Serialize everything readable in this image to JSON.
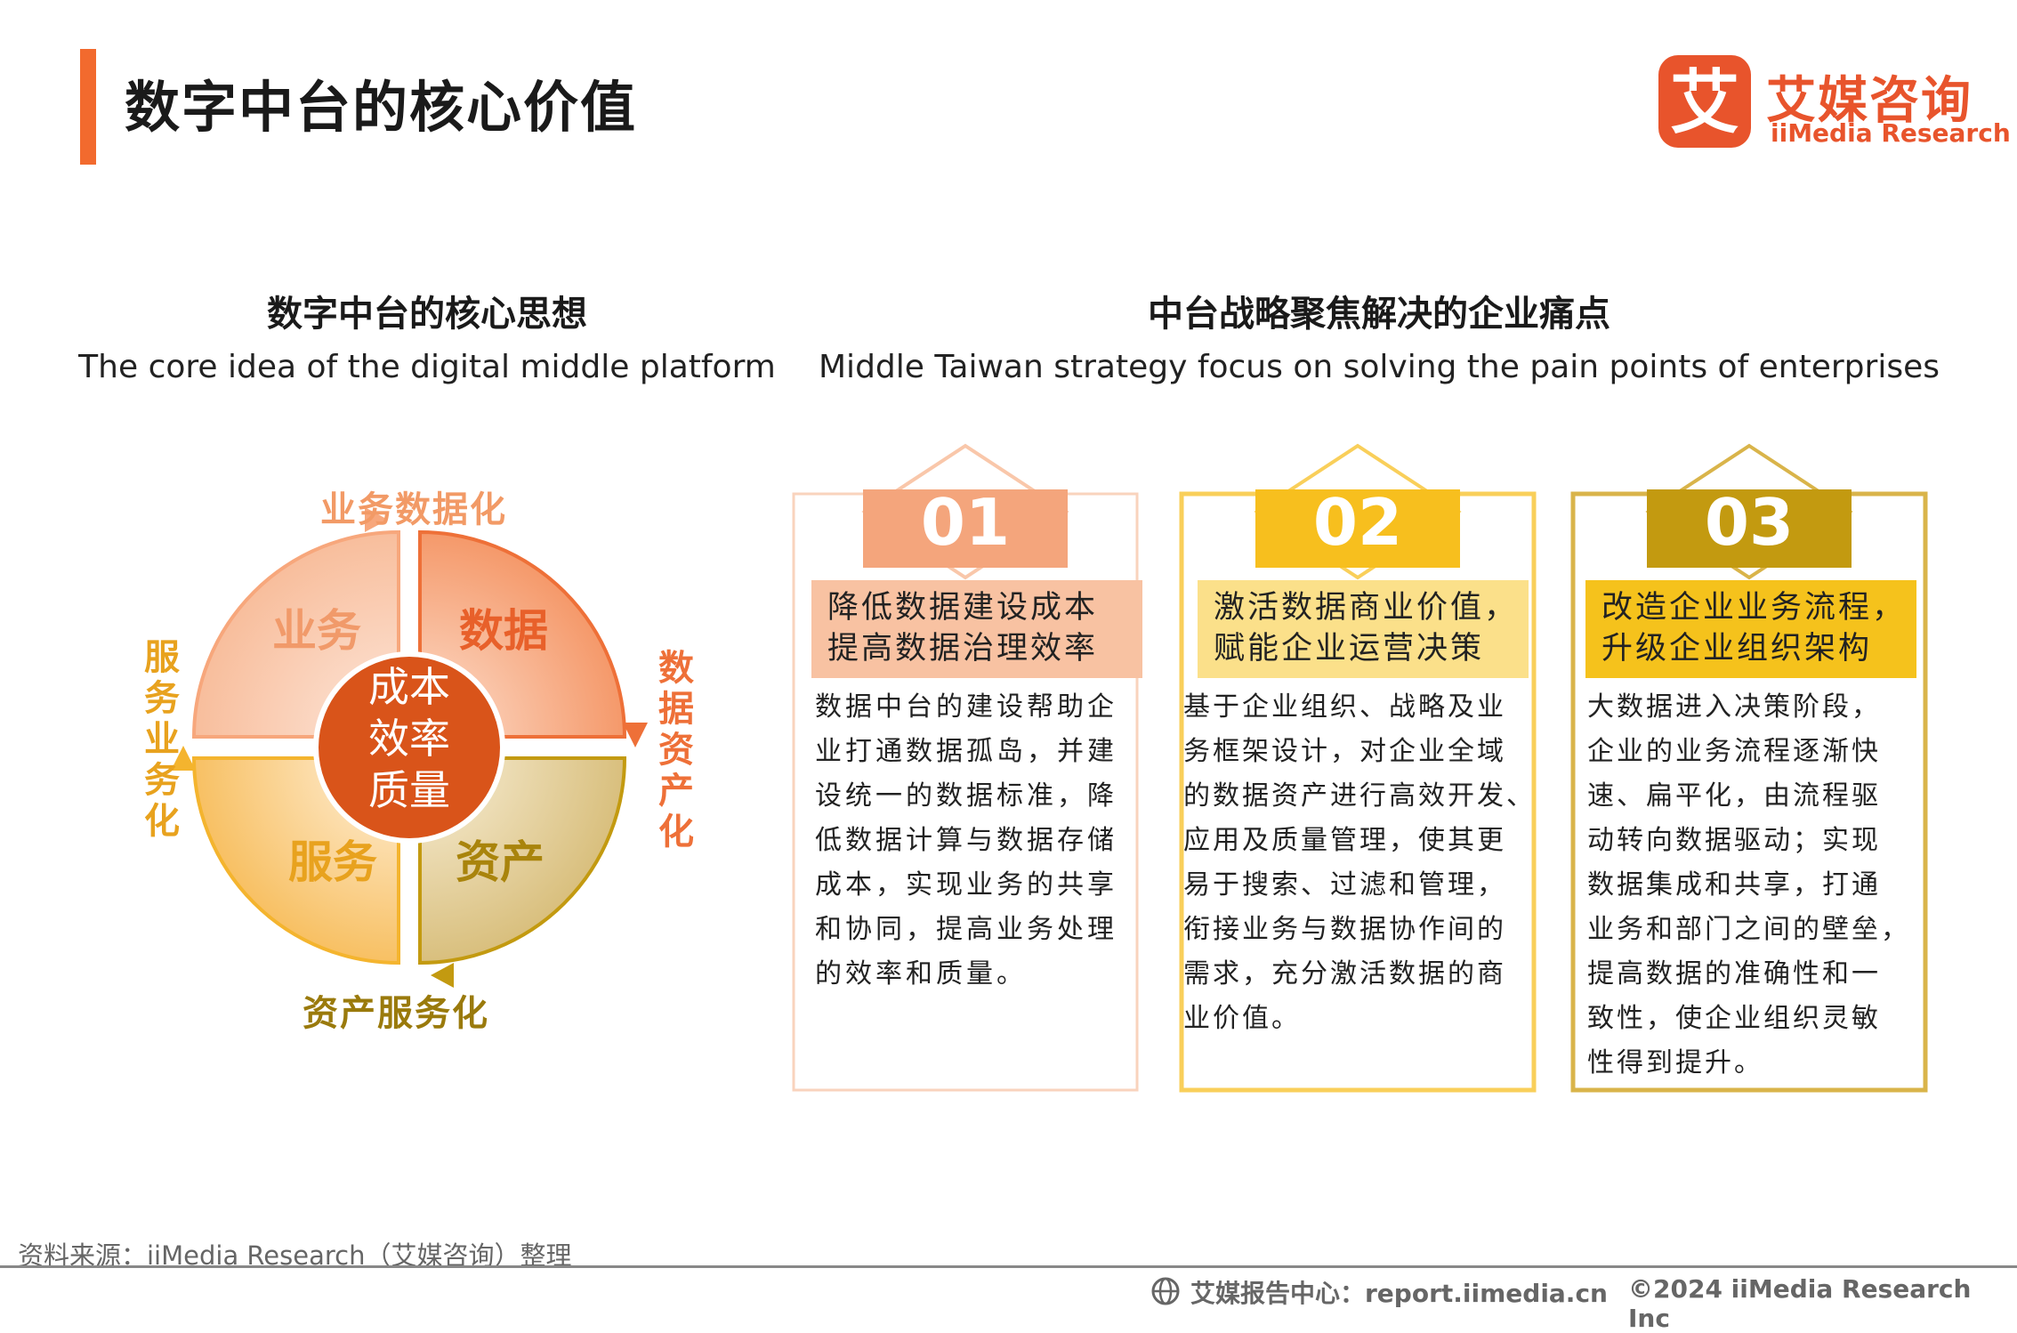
{
  "header": {
    "title": "数字中台的核心价值",
    "logo": {
      "icon": "ai-logo-icon",
      "glyph": "艾",
      "name_cn": "艾媒咨询",
      "name_en": "iiMedia Research",
      "color": "#e8542c"
    }
  },
  "left_section": {
    "title_cn": "数字中台的核心思想",
    "title_en": "The core idea of the digital middle platform",
    "cycle": {
      "center": [
        "成本",
        "效率",
        "质量"
      ],
      "quadrants": [
        "业务",
        "数据",
        "服务",
        "资产"
      ],
      "labels": {
        "top": "业务数据化",
        "right": "数据资产化",
        "bottom": "资产服务化",
        "left": "服务业务化"
      }
    }
  },
  "right_section": {
    "title_cn": "中台战略聚焦解决的企业痛点",
    "title_en": "Middle Taiwan strategy focus on solving the pain points of enterprises",
    "cards": [
      {
        "number": "01",
        "heading": [
          "降低数据建设成本",
          "提高数据治理效率"
        ],
        "body": [
          "数据中台的建设帮助企",
          "业打通数据孤岛，并建",
          "设统一的数据标准，降",
          "低数据计算与数据存储",
          "成本，实现业务的共享",
          "和协同，提高业务处理",
          "的效率和质量。"
        ],
        "color": "#f4a57c"
      },
      {
        "number": "02",
        "heading": [
          "激活数据商业价值，",
          "赋能企业运营决策"
        ],
        "body": [
          "基于企业组织、战略及业",
          "务框架设计，对企业全域",
          "的数据资产进行高效开发、",
          "应用及质量管理，使其更",
          "易于搜索、过滤和管理，",
          "衔接业务与数据协作间的",
          "需求，充分激活数据的商",
          "业价值。"
        ],
        "color": "#f7bf1e"
      },
      {
        "number": "03",
        "heading": [
          "改造企业业务流程，",
          "升级企业组织架构"
        ],
        "body": [
          "大数据进入决策阶段，",
          "企业的业务流程逐渐快",
          "速、扁平化，由流程驱",
          "动转向数据驱动；实现",
          "数据集成和共享，打通",
          "业务和部门之间的壁垒，",
          "提高数据的准确性和一",
          "致性，使企业组织灵敏",
          "性得到提升。"
        ],
        "color": "#c39a10"
      }
    ]
  },
  "footer": {
    "source": "资料来源：iiMedia Research（艾媒咨询）整理",
    "report_center": "艾媒报告中心：report.iimedia.cn",
    "report_icon": "globe-icon",
    "copyright": "©2024  iiMedia Research  Inc"
  }
}
